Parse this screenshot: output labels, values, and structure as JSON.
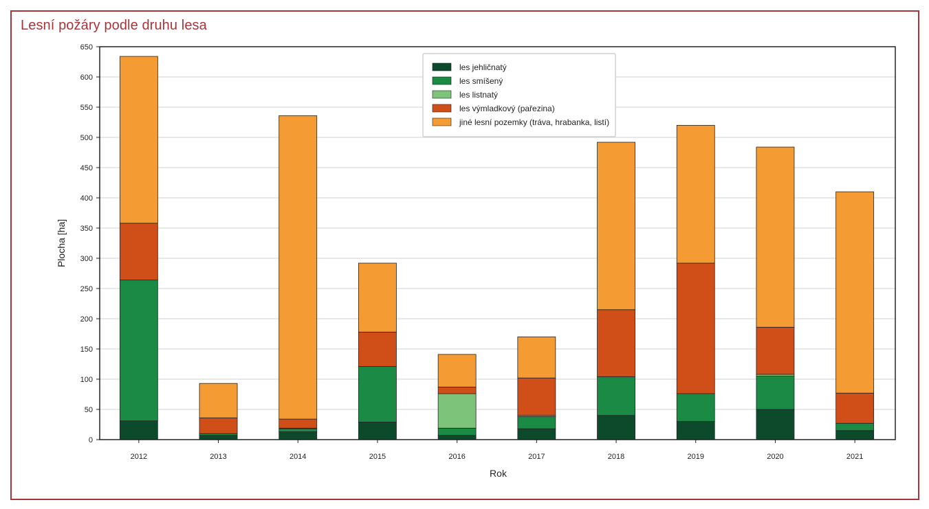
{
  "title": "Lesní požáry podle druhu lesa",
  "chart_data": {
    "type": "bar",
    "stacked": true,
    "categories": [
      "2012",
      "2013",
      "2014",
      "2015",
      "2016",
      "2017",
      "2018",
      "2019",
      "2020",
      "2021"
    ],
    "series": [
      {
        "name": "les jehličnatý",
        "color": "#0d4a2c",
        "values": [
          31,
          7,
          13,
          29,
          7,
          18,
          40,
          30,
          50,
          15
        ]
      },
      {
        "name": "les smíšený",
        "color": "#1b8a45",
        "values": [
          233,
          3,
          5,
          92,
          12,
          20,
          64,
          46,
          55,
          12
        ]
      },
      {
        "name": "les listnatý",
        "color": "#7dc47a",
        "values": [
          0,
          0,
          1,
          0,
          57,
          2,
          0,
          0,
          3,
          0
        ]
      },
      {
        "name": "les výmladkový (pařezina)",
        "color": "#d04f19",
        "values": [
          94,
          26,
          15,
          57,
          11,
          62,
          111,
          216,
          78,
          50
        ]
      },
      {
        "name": "jiné lesní pozemky (tráva, hrabanka, listí)",
        "color": "#f49b33",
        "values": [
          276,
          57,
          502,
          114,
          54,
          68,
          277,
          228,
          298,
          333
        ]
      }
    ],
    "xlabel": "Rok",
    "ylabel": "Plocha [ha]",
    "ylim": [
      0,
      650
    ],
    "yticks": [
      0,
      50,
      100,
      150,
      200,
      250,
      300,
      350,
      400,
      450,
      500,
      550,
      600,
      650
    ],
    "grid": true,
    "legend_position": "top-center"
  }
}
